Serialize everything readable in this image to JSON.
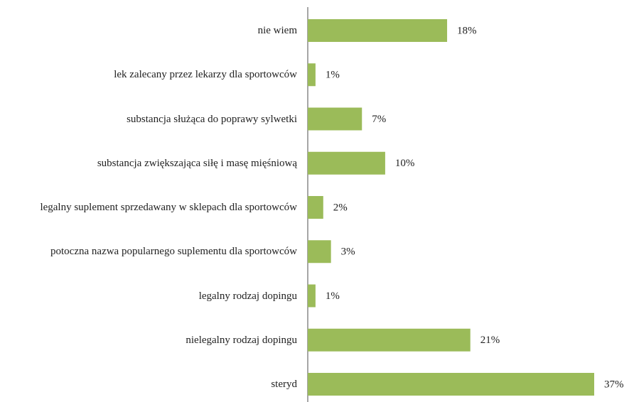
{
  "chart_data": {
    "type": "bar",
    "orientation": "horizontal",
    "categories": [
      "nie wiem",
      "lek zalecany przez lekarzy dla sportowców",
      "substancja służąca do poprawy sylwetki",
      "substancja zwiększająca siłę i masę mięśniową",
      "legalny suplement sprzedawany w sklepach dla sportowców",
      "potoczna nazwa popularnego suplementu dla sportowców",
      "legalny rodzaj dopingu",
      "nielegalny rodzaj dopingu",
      "steryd"
    ],
    "values": [
      18,
      1,
      7,
      10,
      2,
      3,
      1,
      21,
      37
    ],
    "value_labels": [
      "18%",
      "1%",
      "7%",
      "10%",
      "2%",
      "3%",
      "1%",
      "21%",
      "37%"
    ],
    "color": "#9bbb59"
  }
}
